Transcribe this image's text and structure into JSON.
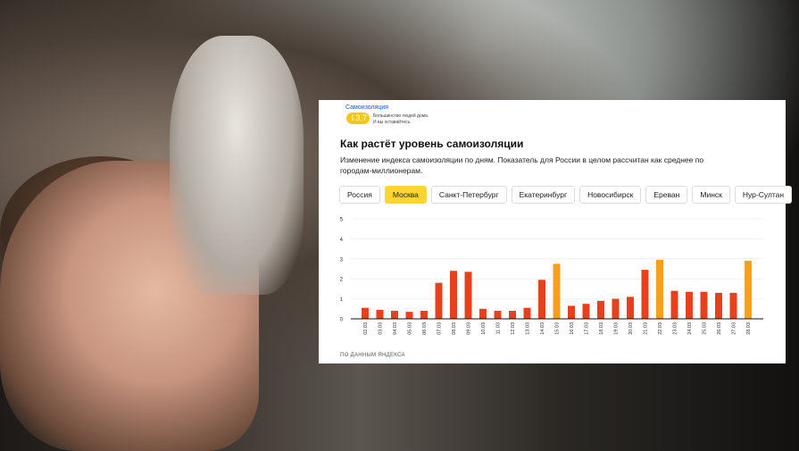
{
  "widget": {
    "brand": "Самоизоляция",
    "score": "3.7",
    "score_icon": "pin-icon",
    "note_line1": "Большинство людей дома.",
    "note_line2": "И вы оставайтесь."
  },
  "title": "Как растёт уровень самоизоляции",
  "subtitle": "Изменение индекса самоизоляции по дням. Показатель для России в целом рассчитан как среднее по городам-миллионерам.",
  "tabs": [
    {
      "label": "Россия"
    },
    {
      "label": "Москва",
      "active": true
    },
    {
      "label": "Санкт-Петербург"
    },
    {
      "label": "Екатеринбург"
    },
    {
      "label": "Новосибирск"
    },
    {
      "label": "Ереван"
    },
    {
      "label": "Минск"
    },
    {
      "label": "Нур-Султан"
    }
  ],
  "source": "ПО ДАННЫМ ЯНДЕКСА",
  "colors": {
    "weekday": "#e8401c",
    "highlight": "#f5a11c",
    "active_tab": "#fdd533"
  },
  "chart_data": {
    "type": "bar",
    "title": "",
    "xlabel": "",
    "ylabel": "",
    "ylim": [
      0,
      5
    ],
    "yticks": [
      "0",
      "1",
      "2",
      "3",
      "4",
      "5"
    ],
    "grid": true,
    "categories": [
      "02.03",
      "03.03",
      "04.03",
      "05.03",
      "06.03",
      "07.03",
      "08.03",
      "09.03",
      "10.03",
      "11.03",
      "12.03",
      "13.03",
      "14.03",
      "15.03",
      "16.03",
      "17.03",
      "18.03",
      "19.03",
      "20.03",
      "21.03",
      "22.03",
      "23.03",
      "24.03",
      "25.03",
      "26.03",
      "27.03",
      "28.03"
    ],
    "values": [
      0.55,
      0.45,
      0.4,
      0.35,
      0.4,
      1.8,
      2.4,
      2.35,
      0.5,
      0.4,
      0.4,
      0.55,
      1.95,
      2.75,
      0.65,
      0.75,
      0.9,
      1.0,
      1.1,
      2.45,
      2.95,
      1.4,
      1.35,
      1.35,
      1.3,
      1.3,
      2.9
    ],
    "highlighted": [
      "15.03",
      "22.03",
      "28.03"
    ]
  }
}
